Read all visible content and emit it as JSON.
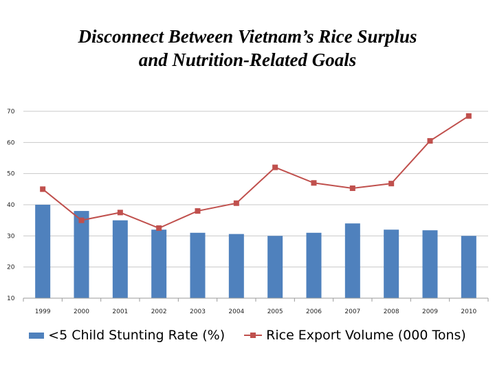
{
  "title": {
    "line1": "Disconnect Between Vietnam’s Rice Surplus",
    "line2": "and Nutrition-Related Goals"
  },
  "chart_data": {
    "type": "bar",
    "categories": [
      "1999",
      "2000",
      "2001",
      "2002",
      "2003",
      "2004",
      "2005",
      "2006",
      "2007",
      "2008",
      "2009",
      "2010"
    ],
    "series": [
      {
        "name": "<5 Child Stunting Rate (%)",
        "type": "bar",
        "color": "#4F81BD",
        "values": [
          40,
          38,
          35,
          32,
          31,
          30.6,
          30,
          31,
          34,
          32,
          31.8,
          30
        ]
      },
      {
        "name": "Rice Export Volume (000 Tons)",
        "type": "line",
        "marker": "square",
        "color": "#C0504D",
        "values": [
          45,
          35,
          37.5,
          32.5,
          38,
          40.5,
          52,
          47,
          45.3,
          46.8,
          60.5,
          68.5
        ]
      }
    ],
    "ylim": [
      10,
      70
    ],
    "yticks": [
      "10",
      "20",
      "30",
      "40",
      "50",
      "60",
      "70"
    ],
    "grid": true,
    "legend": "bottom"
  }
}
